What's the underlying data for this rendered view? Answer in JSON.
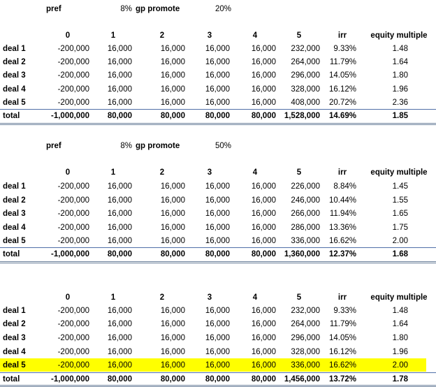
{
  "blocks": [
    {
      "params": [
        "pref",
        "8%",
        "gp promote",
        "20%"
      ],
      "header": [
        "0",
        "1",
        "2",
        "3",
        "4",
        "5",
        "irr",
        "equity multiple"
      ],
      "rows": [
        [
          "deal 1",
          "-200,000",
          "16,000",
          "16,000",
          "16,000",
          "16,000",
          "232,000",
          "9.33%",
          "1.48"
        ],
        [
          "deal 2",
          "-200,000",
          "16,000",
          "16,000",
          "16,000",
          "16,000",
          "264,000",
          "11.79%",
          "1.64"
        ],
        [
          "deal 3",
          "-200,000",
          "16,000",
          "16,000",
          "16,000",
          "16,000",
          "296,000",
          "14.05%",
          "1.80"
        ],
        [
          "deal 4",
          "-200,000",
          "16,000",
          "16,000",
          "16,000",
          "16,000",
          "328,000",
          "16.12%",
          "1.96"
        ],
        [
          "deal 5",
          "-200,000",
          "16,000",
          "16,000",
          "16,000",
          "16,000",
          "408,000",
          "20.72%",
          "2.36"
        ]
      ],
      "total": [
        "total",
        "-1,000,000",
        "80,000",
        "80,000",
        "80,000",
        "80,000",
        "1,528,000",
        "14.69%",
        "1.85"
      ]
    },
    {
      "params": [
        "pref",
        "8%",
        "gp promote",
        "50%"
      ],
      "header": [
        "0",
        "1",
        "2",
        "3",
        "4",
        "5",
        "irr",
        "equity multiple"
      ],
      "rows": [
        [
          "deal 1",
          "-200,000",
          "16,000",
          "16,000",
          "16,000",
          "16,000",
          "226,000",
          "8.84%",
          "1.45"
        ],
        [
          "deal 2",
          "-200,000",
          "16,000",
          "16,000",
          "16,000",
          "16,000",
          "246,000",
          "10.44%",
          "1.55"
        ],
        [
          "deal 3",
          "-200,000",
          "16,000",
          "16,000",
          "16,000",
          "16,000",
          "266,000",
          "11.94%",
          "1.65"
        ],
        [
          "deal 4",
          "-200,000",
          "16,000",
          "16,000",
          "16,000",
          "16,000",
          "286,000",
          "13.36%",
          "1.75"
        ],
        [
          "deal 5",
          "-200,000",
          "16,000",
          "16,000",
          "16,000",
          "16,000",
          "336,000",
          "16.62%",
          "2.00"
        ]
      ],
      "total": [
        "total",
        "-1,000,000",
        "80,000",
        "80,000",
        "80,000",
        "80,000",
        "1,360,000",
        "12.37%",
        "1.68"
      ]
    },
    {
      "header": [
        "0",
        "1",
        "2",
        "3",
        "4",
        "5",
        "irr",
        "equity multiple"
      ],
      "rows": [
        [
          "deal 1",
          "-200,000",
          "16,000",
          "16,000",
          "16,000",
          "16,000",
          "232,000",
          "9.33%",
          "1.48"
        ],
        [
          "deal 2",
          "-200,000",
          "16,000",
          "16,000",
          "16,000",
          "16,000",
          "264,000",
          "11.79%",
          "1.64"
        ],
        [
          "deal 3",
          "-200,000",
          "16,000",
          "16,000",
          "16,000",
          "16,000",
          "296,000",
          "14.05%",
          "1.80"
        ],
        [
          "deal 4",
          "-200,000",
          "16,000",
          "16,000",
          "16,000",
          "16,000",
          "328,000",
          "16.12%",
          "1.96"
        ],
        [
          "deal 5",
          "-200,000",
          "16,000",
          "16,000",
          "16,000",
          "16,000",
          "336,000",
          "16.62%",
          "2.00"
        ]
      ],
      "total": [
        "total",
        "-1,000,000",
        "80,000",
        "80,000",
        "80,000",
        "80,000",
        "1,456,000",
        "13.72%",
        "1.78"
      ]
    }
  ]
}
